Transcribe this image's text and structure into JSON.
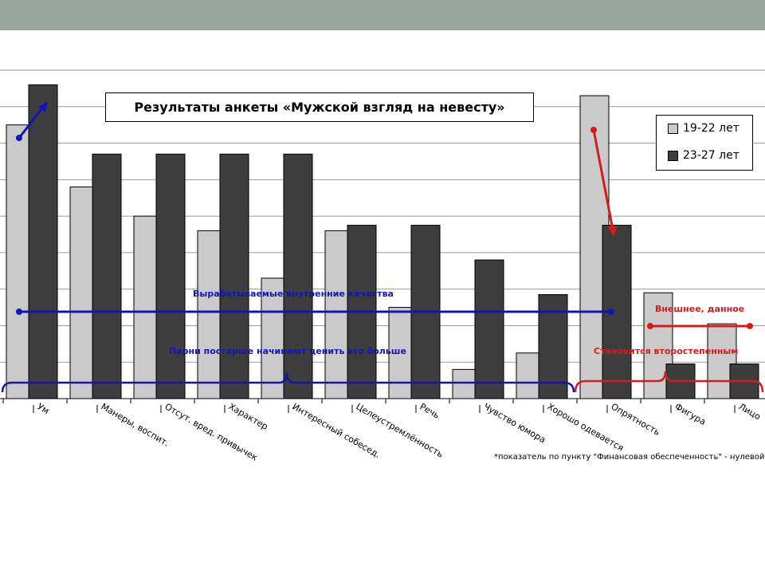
{
  "chart_data": {
    "type": "bar",
    "title": "Результаты анкеты «Мужской взгляд на невесту»",
    "categories": [
      "Ум",
      "Манеры, воспит.",
      "Отсут. вред. привычек",
      "Характер",
      "Интересный собесед.",
      "Целеустремлённость",
      "Речь",
      "Чувство юмора",
      "Хорошо одевается",
      "Опрятность",
      "Фигура",
      "Лицо"
    ],
    "series": [
      {
        "name": "19-22 лет",
        "color": "#cacaca",
        "values": [
          7.5,
          5.8,
          5.0,
          4.6,
          3.3,
          4.6,
          2.5,
          0.8,
          1.25,
          8.3,
          2.9,
          2.05
        ]
      },
      {
        "name": "23-27 лет",
        "color": "#3d3d3d",
        "values": [
          8.6,
          6.7,
          6.7,
          6.7,
          6.7,
          4.75,
          4.75,
          3.8,
          2.85,
          4.75,
          0.95,
          0.95
        ]
      }
    ],
    "ylim": [
      0,
      9
    ],
    "grid": true,
    "legend_position": "top-right",
    "annotations": {
      "blue_top": "Вырабатываемые внутренние качества",
      "blue_bottom": "Парни постарше начинают ценить это больше",
      "red_top": "Внешнее, данное",
      "red_bottom": "Становится второстепенным"
    },
    "footnote": "*показатель по пункту \"Финансовая обеспеченность\" - нулевой"
  }
}
